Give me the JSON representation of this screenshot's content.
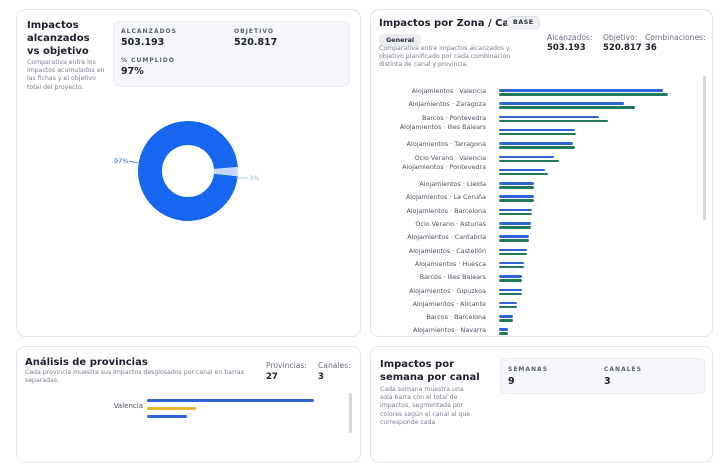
{
  "colors": {
    "blue": "#2f63d8",
    "green": "#1f7a5c",
    "yellow": "#e8b631",
    "donut_main": "#1766f0",
    "donut_rest": "#c4d8fb"
  },
  "card_objective": {
    "title": "Impactos alcanzados vs objetivo",
    "description": "Comparativa entre los impactos acumulados en las fichas y el objetivo total del proyecto.",
    "stats": {
      "reached_label": "ALCANZADOS",
      "reached_value": "503.193",
      "target_label": "OBJETIVO",
      "target_value": "520.817",
      "pct_label": "% CUMPLIDO",
      "pct_value": "97%"
    },
    "donut": {
      "main_label": "97%",
      "rest_label": "3%",
      "main_fraction": 0.97
    }
  },
  "card_zones": {
    "title": "Impactos por Zona / Canal",
    "badge": "BASE",
    "pill": "General",
    "description": "Comparativa entre impactos alcanzados y objetivo planificado por cada combinacion distinta de canal y provincia.",
    "reached_label": "Alcanzados:",
    "reached_value": "503.193",
    "target_label": "Objetivo:",
    "target_value": "520.817",
    "combos_label": "Combinaciones:",
    "combos_value": "36",
    "rows": [
      {
        "label": "Alojamientos · Valencia",
        "reached": 0.93,
        "target": 0.96
      },
      {
        "label": "Alojamientos · Zaragoza",
        "reached": 0.71,
        "target": 0.77
      },
      {
        "label": "Barcos · Pontevedra",
        "reached": 0.57,
        "target": 0.62
      },
      {
        "label": "Alojamientos · Illes Balears",
        "reached": 0.43,
        "target": 0.44
      },
      {
        "label": "Alojamientos · Tarragona",
        "reached": 0.42,
        "target": 0.43
      },
      {
        "label": "Ocio Verano · Valencia",
        "reached": 0.31,
        "target": 0.34
      },
      {
        "label": "Alojamientos · Pontevedra",
        "reached": 0.26,
        "target": 0.28
      },
      {
        "label": "Alojamientos · Lleida",
        "reached": 0.2,
        "target": 0.2
      },
      {
        "label": "Alojamientos · La Coruña",
        "reached": 0.2,
        "target": 0.2
      },
      {
        "label": "Alojamientos · Barcelona",
        "reached": 0.19,
        "target": 0.19
      },
      {
        "label": "Ocio Verano · Asturias",
        "reached": 0.18,
        "target": 0.18
      },
      {
        "label": "Alojamientos · Cantabria",
        "reached": 0.17,
        "target": 0.17
      },
      {
        "label": "Alojamientos · Castellón",
        "reached": 0.16,
        "target": 0.16
      },
      {
        "label": "Alojamientos · Huesca",
        "reached": 0.14,
        "target": 0.14
      },
      {
        "label": "Barcos · Illes Balears",
        "reached": 0.13,
        "target": 0.13
      },
      {
        "label": "Alojamientos · Gipuzkoa",
        "reached": 0.13,
        "target": 0.13
      },
      {
        "label": "Alojamientos · Alicante",
        "reached": 0.1,
        "target": 0.1
      },
      {
        "label": "Barcos · Barcelona",
        "reached": 0.08,
        "target": 0.08
      },
      {
        "label": "Alojamientos · Navarra",
        "reached": 0.05,
        "target": 0.05
      }
    ]
  },
  "card_provinces": {
    "title": "Análisis de provincias",
    "description": "Cada provincia muestra sus impactos desglosados por canal en barras separadas.",
    "prov_label": "Provincias:",
    "prov_value": "27",
    "chan_label": "Canales:",
    "chan_value": "3",
    "rows": [
      {
        "label": "Valencia",
        "blue": 0.93,
        "yellow": 0.27,
        "blue2": 0.22
      }
    ]
  },
  "card_weekly": {
    "title": "Impactos por semana por canal",
    "description": "Cada semana muestra una sola barra con el total de impactos, segmentada por colores según el canal al que corresponde cada",
    "weeks_label": "SEMANAS",
    "weeks_value": "9",
    "channels_label": "CANALES",
    "channels_value": "3"
  }
}
